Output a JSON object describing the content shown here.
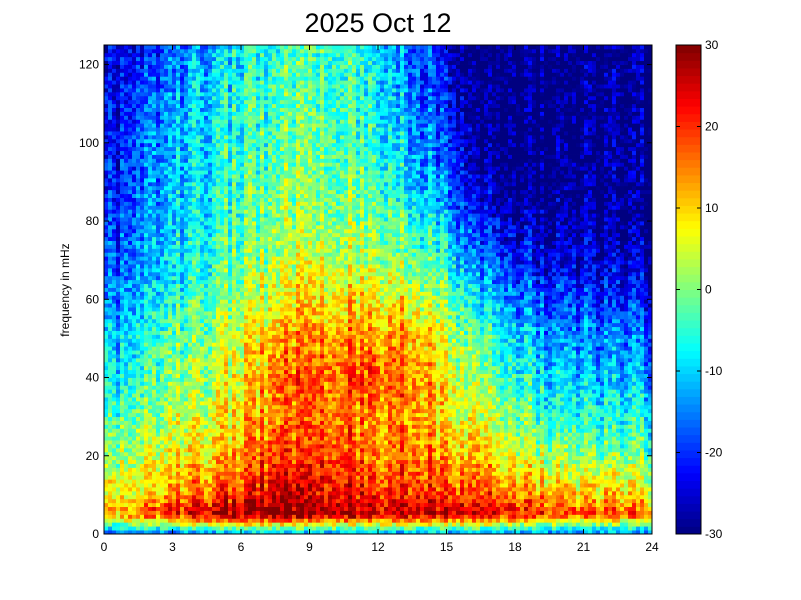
{
  "chart_data": {
    "type": "heatmap",
    "title": "2025 Oct 12",
    "xlabel": "",
    "ylabel": "frequency in mHz",
    "xlim": [
      0,
      24
    ],
    "ylim": [
      0,
      125
    ],
    "x_ticks": [
      0,
      3,
      6,
      9,
      12,
      15,
      18,
      21,
      24
    ],
    "y_ticks": [
      0,
      20,
      40,
      60,
      80,
      100,
      120
    ],
    "colorbar": {
      "colormap": "jet",
      "clim": [
        -30,
        30
      ],
      "ticks": [
        -30,
        -20,
        -10,
        0,
        10,
        20,
        30
      ]
    },
    "grid": false,
    "x_hours": [
      0,
      1.5,
      3,
      4.5,
      6,
      7.5,
      9,
      10.5,
      12,
      13.5,
      15,
      16.5,
      18,
      19.5,
      21,
      22.5,
      24
    ],
    "y_mhz": [
      0,
      5,
      10,
      15,
      20,
      30,
      40,
      50,
      60,
      70,
      80,
      90,
      100,
      110,
      120,
      125
    ],
    "level_db": [
      [
        -20,
        -15,
        -18,
        -15,
        -15,
        -15,
        -15,
        -15,
        -15,
        -15,
        -15,
        -15,
        -16,
        -16,
        -16,
        -16,
        -18
      ],
      [
        10,
        18,
        22,
        27,
        29,
        30,
        30,
        29,
        27,
        28,
        26,
        27,
        22,
        20,
        18,
        17,
        15
      ],
      [
        5,
        10,
        14,
        18,
        21,
        26,
        25,
        24,
        21,
        22,
        19,
        21,
        15,
        13,
        11,
        10,
        8
      ],
      [
        3,
        7,
        11,
        14,
        17,
        22,
        23,
        22,
        18,
        19,
        15,
        16,
        10,
        7,
        5,
        4,
        3
      ],
      [
        0,
        4,
        7,
        10,
        14,
        19,
        20,
        19,
        15,
        16,
        12,
        13,
        6,
        2,
        0,
        -1,
        -2
      ],
      [
        -5,
        0,
        3,
        6,
        10,
        15,
        17,
        16,
        14,
        14,
        8,
        7,
        0,
        -4,
        -6,
        -7,
        -8
      ],
      [
        -9,
        -4,
        0,
        3,
        8,
        16,
        18,
        18,
        19,
        17,
        7,
        3,
        -5,
        -9,
        -11,
        -12,
        -12
      ],
      [
        -12,
        -7,
        -2,
        1,
        6,
        12,
        15,
        15,
        14,
        13,
        4,
        -1,
        -9,
        -13,
        -15,
        -16,
        -16
      ],
      [
        -16,
        -11,
        -6,
        -2,
        2,
        7,
        10,
        9,
        9,
        7,
        -1,
        -8,
        -15,
        -18,
        -20,
        -21,
        -22
      ],
      [
        -19,
        -13,
        -8,
        -4,
        -1,
        3,
        6,
        4,
        3,
        0,
        -6,
        -14,
        -21,
        -24,
        -25,
        -26,
        -27
      ],
      [
        -22,
        -15,
        -10,
        -6,
        -3,
        1,
        3,
        1,
        0,
        -5,
        -12,
        -20,
        -26,
        -28,
        -29,
        -29,
        -30
      ],
      [
        -24,
        -16,
        -11,
        -7,
        -4,
        -1,
        1,
        -1,
        -3,
        -9,
        -17,
        -25,
        -30,
        -30,
        -30,
        -30,
        -30
      ],
      [
        -24,
        -17,
        -12,
        -8,
        -5,
        -2,
        0,
        -2,
        -5,
        -12,
        -20,
        -28,
        -30,
        -30,
        -30,
        -30,
        -30
      ],
      [
        -25,
        -18,
        -13,
        -9,
        -6,
        -3,
        -1,
        -3,
        -7,
        -14,
        -22,
        -29,
        -30,
        -30,
        -30,
        -30,
        -30
      ],
      [
        -26,
        -20,
        -15,
        -11,
        -7,
        -4,
        -2,
        -4,
        -8,
        -15,
        -24,
        -30,
        -30,
        -30,
        -30,
        -30,
        -30
      ],
      [
        -27,
        -22,
        -17,
        -12,
        -8,
        -5,
        -3,
        -5,
        -10,
        -17,
        -25,
        -30,
        -30,
        -30,
        -30,
        -30,
        -30
      ]
    ]
  }
}
